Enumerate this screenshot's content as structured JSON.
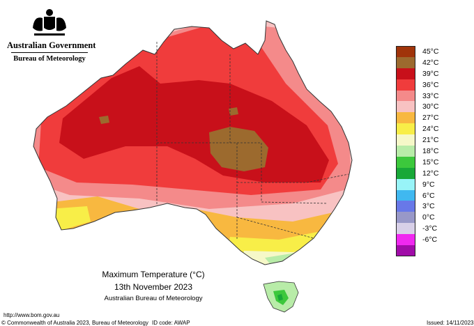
{
  "header": {
    "government": "Australian Government",
    "bureau": "Bureau of Meteorology"
  },
  "legend": {
    "items": [
      {
        "label": "45°C",
        "color": "#a0340a"
      },
      {
        "label": "42°C",
        "color": "#9c6a2e"
      },
      {
        "label": "39°C",
        "color": "#c8101a"
      },
      {
        "label": "36°C",
        "color": "#f03c3c"
      },
      {
        "label": "33°C",
        "color": "#f48a8a"
      },
      {
        "label": "30°C",
        "color": "#f8c2c2"
      },
      {
        "label": "27°C",
        "color": "#f8b840"
      },
      {
        "label": "24°C",
        "color": "#f8ee48"
      },
      {
        "label": "21°C",
        "color": "#f6f8c8"
      },
      {
        "label": "18°C",
        "color": "#b8eca8"
      },
      {
        "label": "15°C",
        "color": "#3cc83c"
      },
      {
        "label": "12°C",
        "color": "#18a838"
      },
      {
        "label": "9°C",
        "color": "#98f4f8"
      },
      {
        "label": "6°C",
        "color": "#40b8f0"
      },
      {
        "label": "3°C",
        "color": "#6878e8"
      },
      {
        "label": "0°C",
        "color": "#9898c8"
      },
      {
        "label": "-3°C",
        "color": "#d8d0e8"
      },
      {
        "label": "-6°C",
        "color": "#f028f0"
      },
      {
        "label": "",
        "color": "#a00ca8"
      }
    ]
  },
  "caption": {
    "title": "Maximum Temperature (°C)",
    "date": "13th November 2023",
    "source": "Australian Bureau of Meteorology"
  },
  "footer": {
    "url": "http://www.bom.gov.au",
    "copyright": "© Commonwealth of Australia 2023, Bureau of Meteorology",
    "id_code": "ID code: AWAP",
    "issued": "Issued: 14/11/2023"
  }
}
